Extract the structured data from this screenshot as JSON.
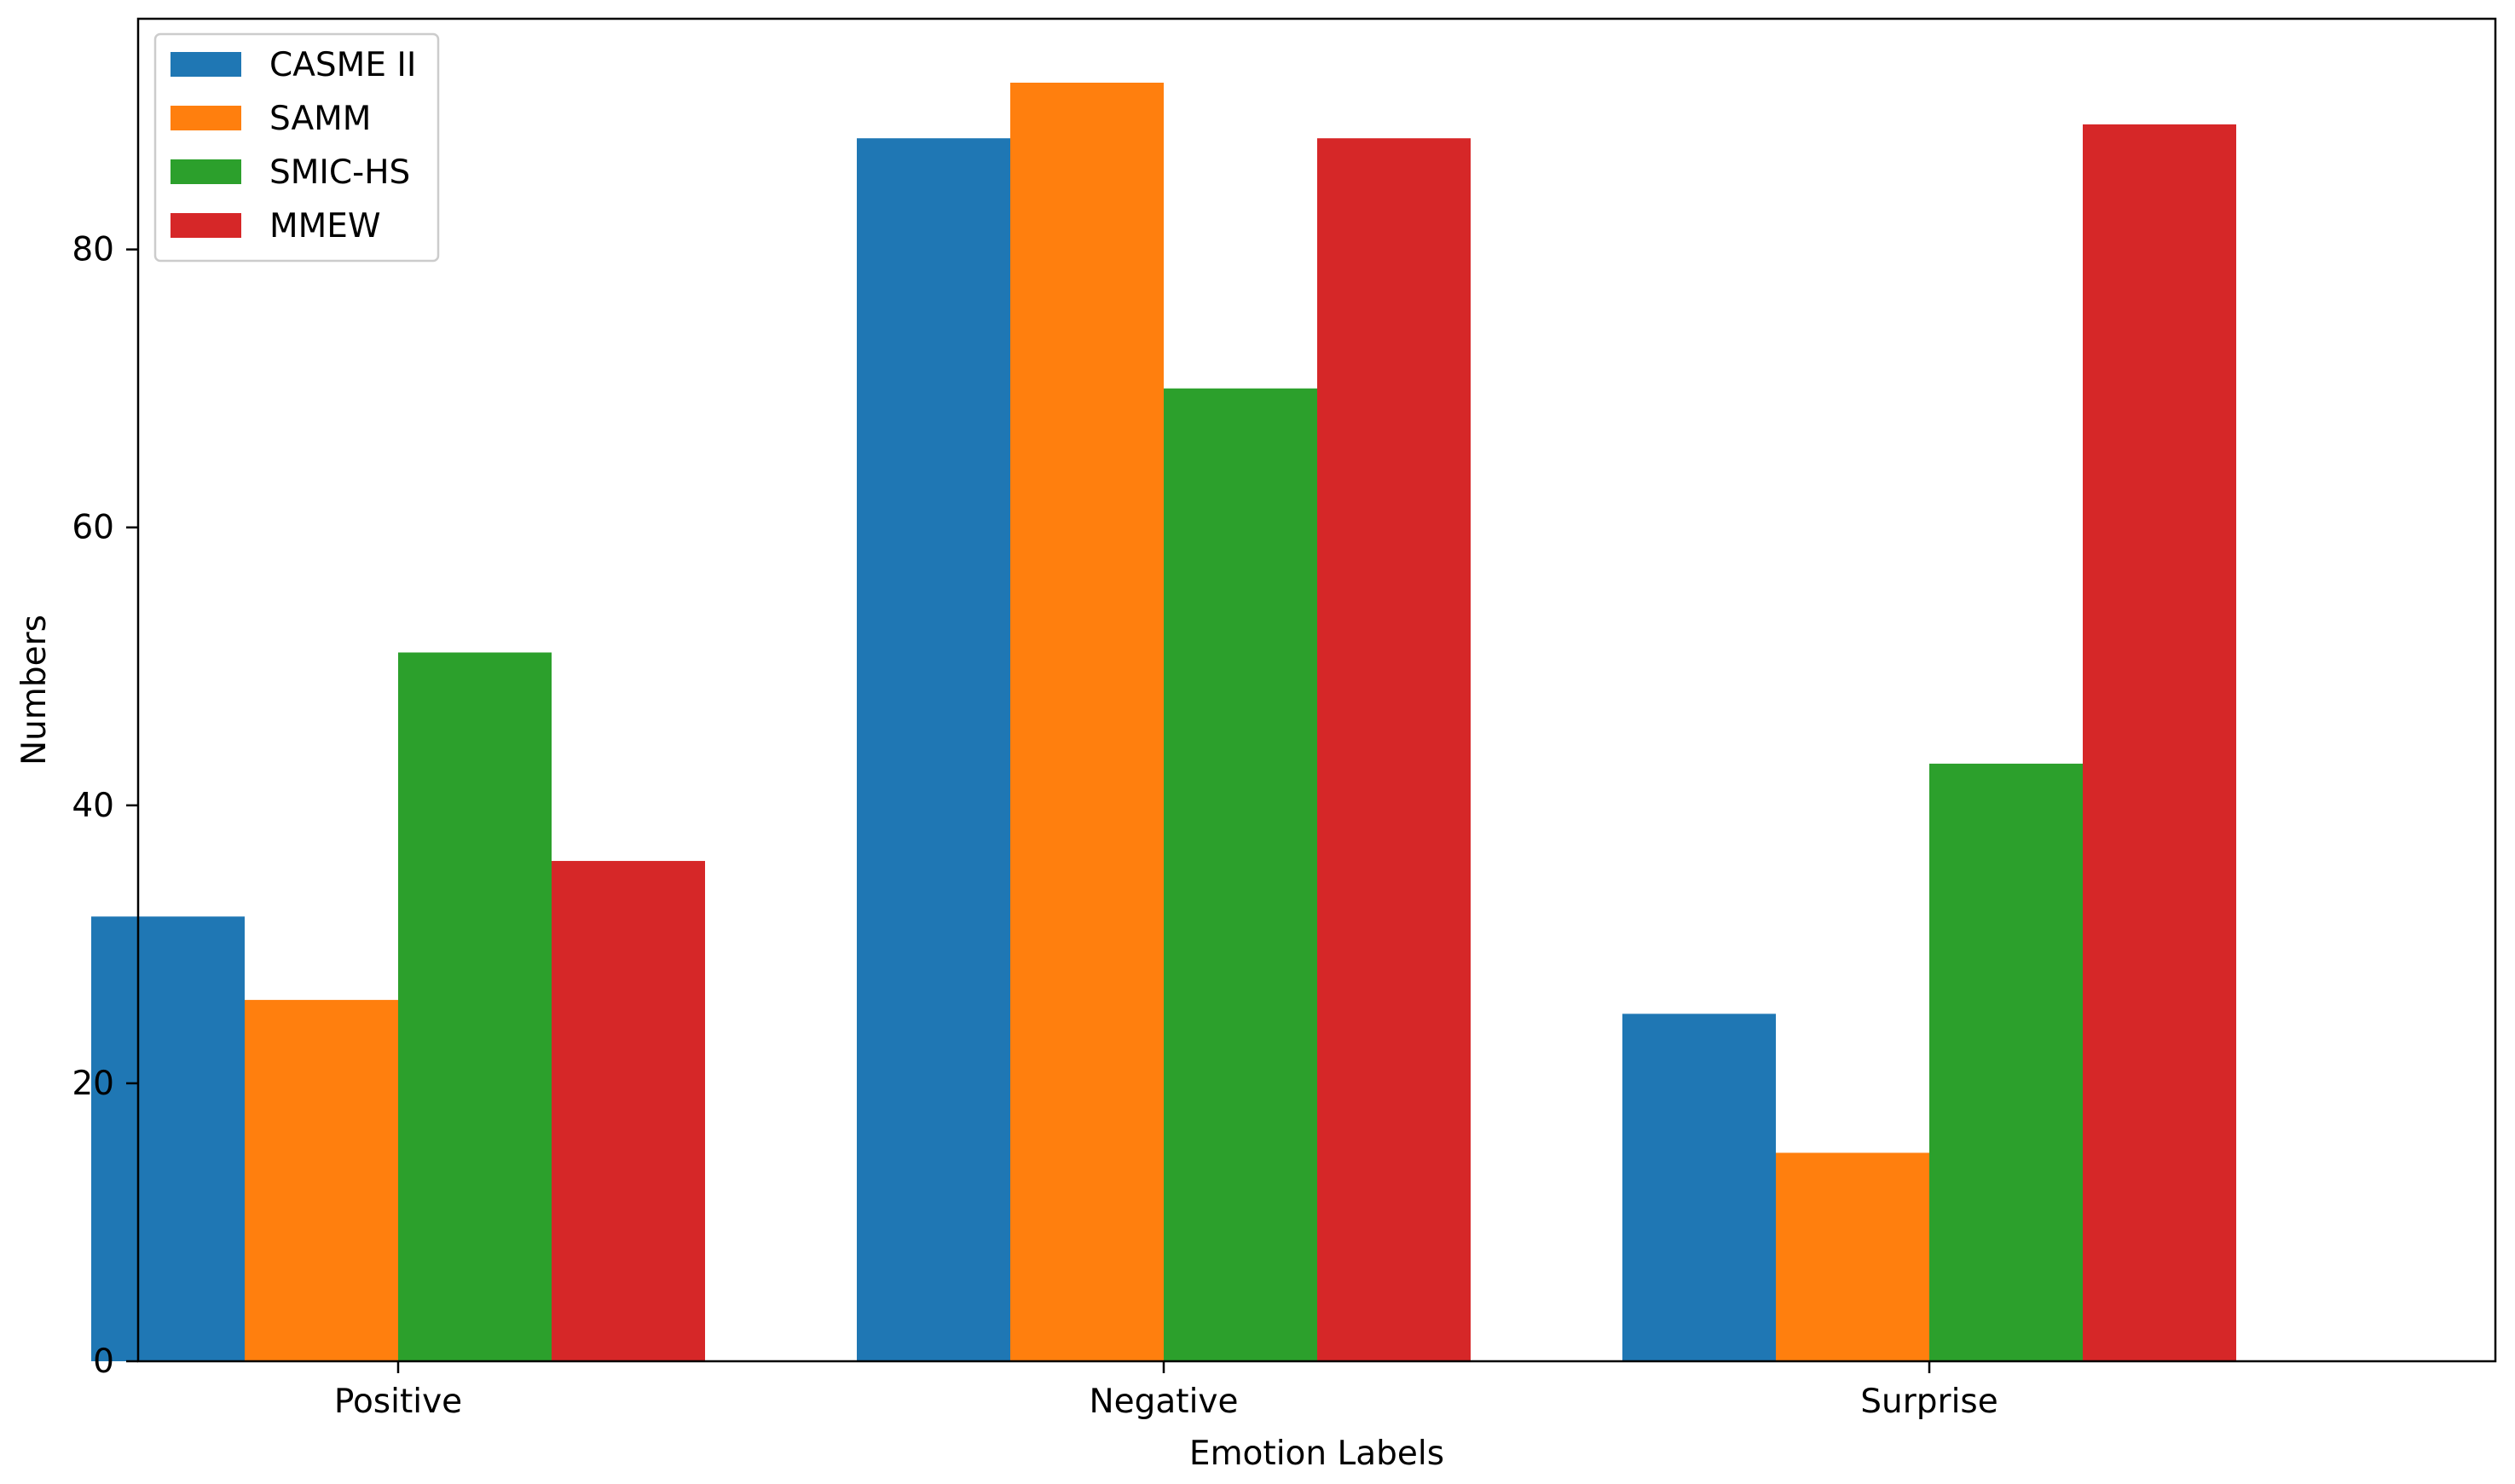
{
  "chart_data": {
    "type": "bar",
    "title": "",
    "xlabel": "Emotion Labels",
    "ylabel": "Numbers",
    "categories": [
      "Positive",
      "Negative",
      "Surprise"
    ],
    "series": [
      {
        "name": "CASME II",
        "color": "#1f77b4",
        "values": [
          32,
          88,
          25
        ]
      },
      {
        "name": "SAMM",
        "color": "#ff7f0e",
        "values": [
          26,
          92,
          15
        ]
      },
      {
        "name": "SMIC-HS",
        "color": "#2ca02c",
        "values": [
          51,
          70,
          43
        ]
      },
      {
        "name": "MMEW",
        "color": "#d62728",
        "values": [
          36,
          88,
          89
        ]
      }
    ],
    "ylim": [
      0,
      96.6
    ],
    "yticks": [
      "0",
      "20",
      "40",
      "60",
      "80"
    ],
    "grid": false,
    "legend_position": "top-left"
  }
}
